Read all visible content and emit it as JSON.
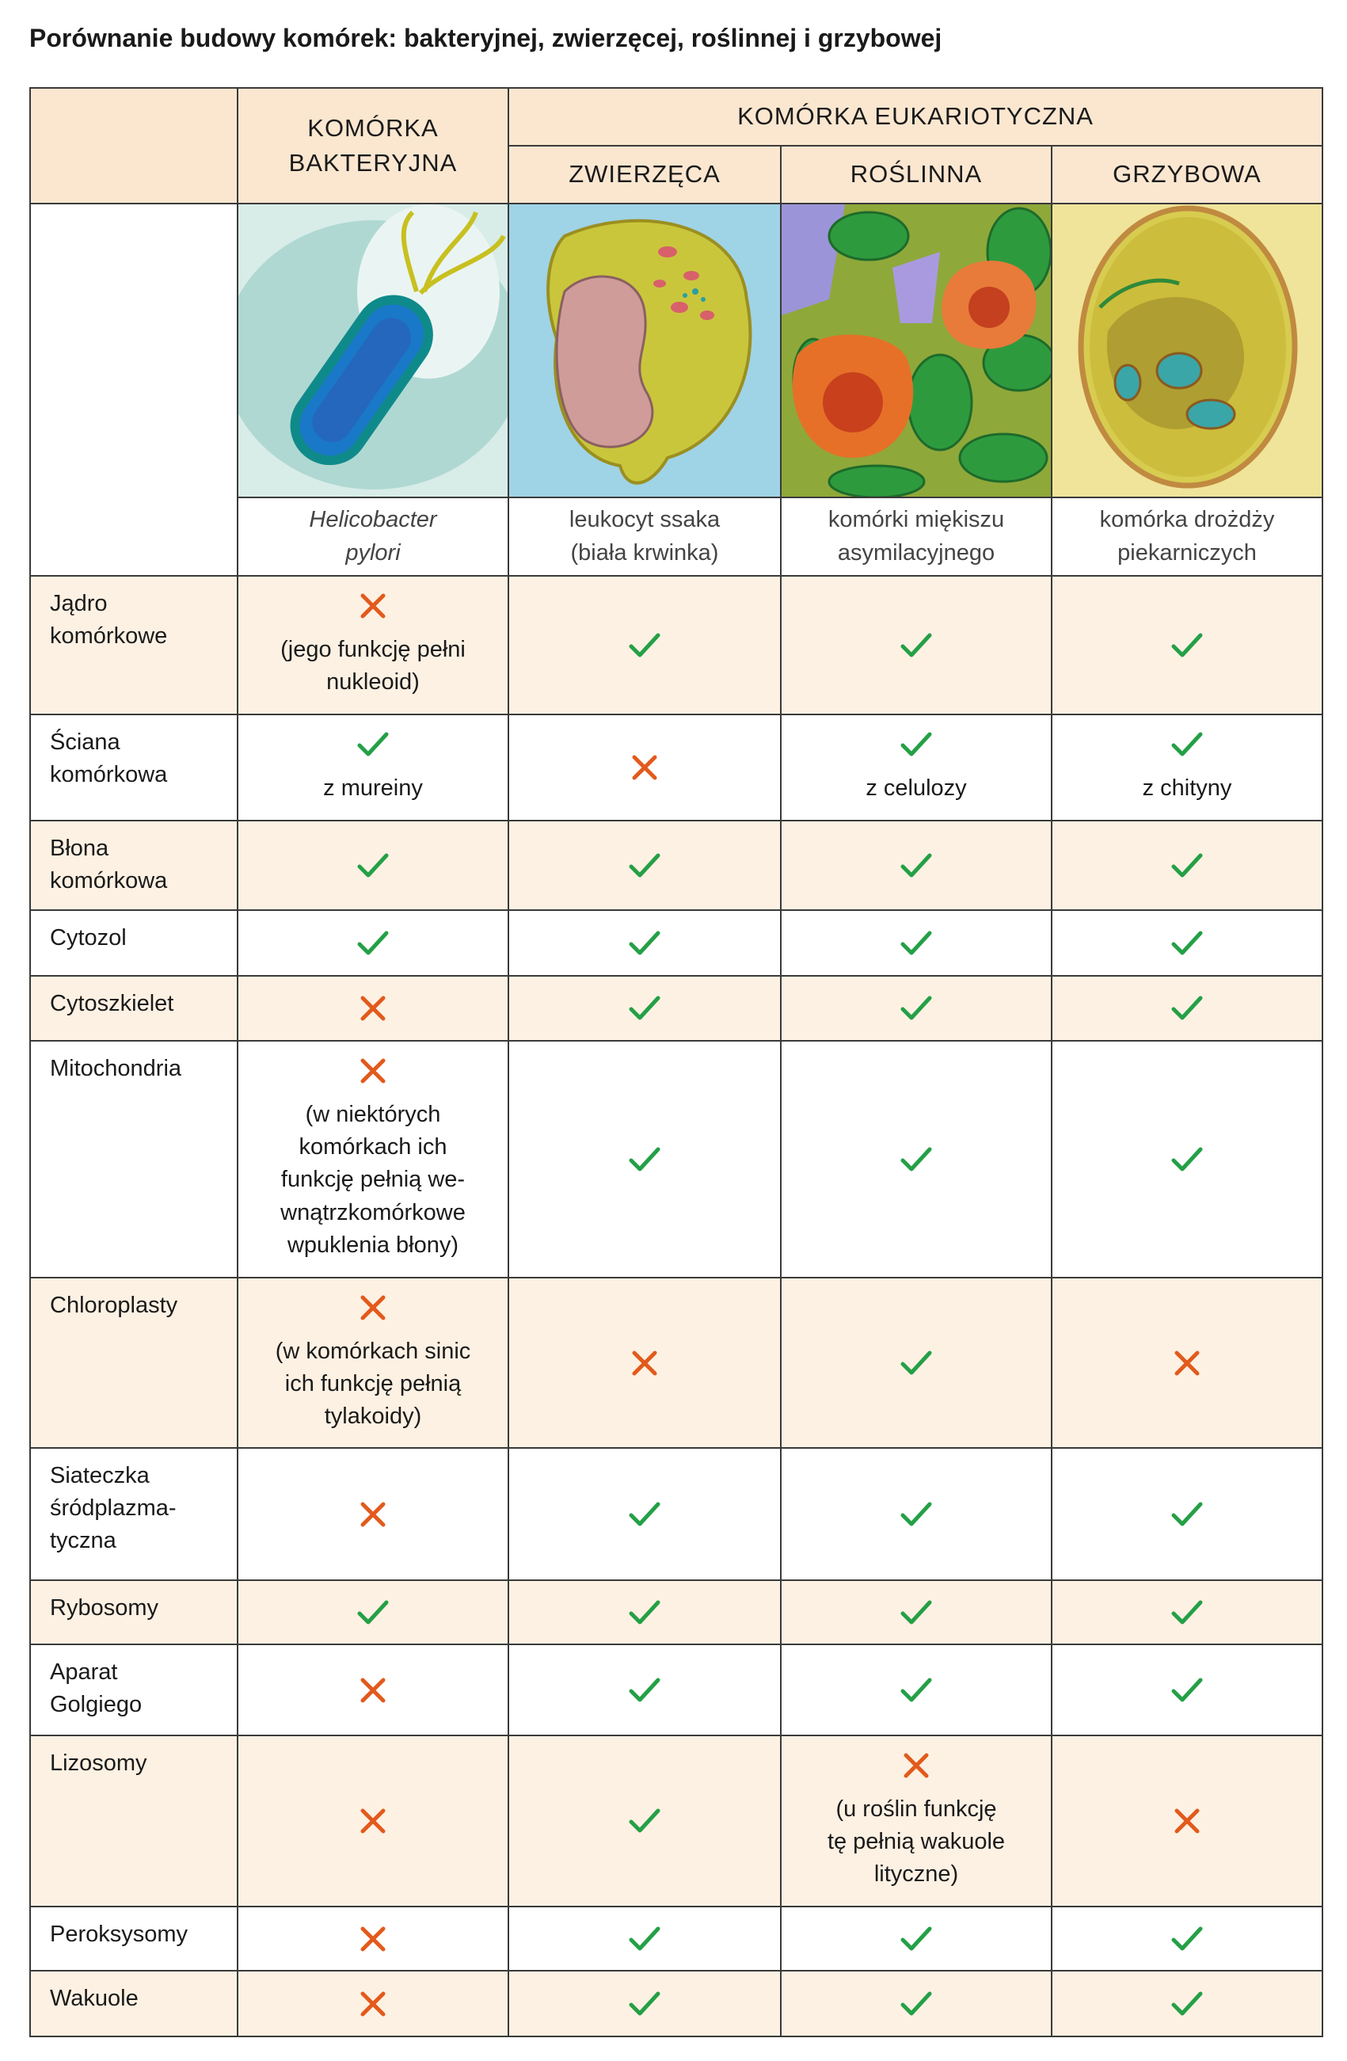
{
  "title": "Porównanie budowy komórek: bakteryjnej, zwierzęcej, roślinnej i grzybowej",
  "table": {
    "header": {
      "bacterial": "KOMÓRKA\nBAKTERYJNA",
      "eukaryotic": "KOMÓRKA EUKARIOTYCZNA",
      "columns": [
        "ZWIERZĘCA",
        "ROŚLINNA",
        "GRZYBOWA"
      ]
    },
    "captions": [
      "Helicobacter\npylori",
      "leukocyt ssaka\n(biała krwinka)",
      "komórki miękiszu\nasymilacyjnego",
      "komórka drożdży\npiekarniczych"
    ],
    "rows": [
      {
        "label": "Jądro\nkomórkowe",
        "cells": [
          {
            "present": false,
            "note": "(jego funkcję pełni\nnukleoid)"
          },
          {
            "present": true
          },
          {
            "present": true
          },
          {
            "present": true
          }
        ]
      },
      {
        "label": "Ściana\nkomórkowa",
        "cells": [
          {
            "present": true,
            "note": "z mureiny"
          },
          {
            "present": false
          },
          {
            "present": true,
            "note": "z celulozy"
          },
          {
            "present": true,
            "note": "z chityny"
          }
        ]
      },
      {
        "label": "Błona\nkomórkowa",
        "cells": [
          {
            "present": true
          },
          {
            "present": true
          },
          {
            "present": true
          },
          {
            "present": true
          }
        ]
      },
      {
        "label": "Cytozol",
        "cells": [
          {
            "present": true
          },
          {
            "present": true
          },
          {
            "present": true
          },
          {
            "present": true
          }
        ]
      },
      {
        "label": "Cytoszkielet",
        "cells": [
          {
            "present": false
          },
          {
            "present": true
          },
          {
            "present": true
          },
          {
            "present": true
          }
        ]
      },
      {
        "label": "Mitochondria",
        "cells": [
          {
            "present": false,
            "note": "(w niektórych\nkomórkach ich\nfunkcję pełnią we-\nwnątrzkomórkowe\nwpuklenia błony)"
          },
          {
            "present": true
          },
          {
            "present": true
          },
          {
            "present": true
          }
        ]
      },
      {
        "label": "Chloroplasty",
        "cells": [
          {
            "present": false,
            "note": "(w komórkach sinic\nich funkcję pełnią\ntylakoidy)"
          },
          {
            "present": false
          },
          {
            "present": true
          },
          {
            "present": false
          }
        ]
      },
      {
        "label": "Siateczka\nśródplazma-\ntyczna",
        "cells": [
          {
            "present": false
          },
          {
            "present": true
          },
          {
            "present": true
          },
          {
            "present": true
          }
        ]
      },
      {
        "label": "Rybosomy",
        "cells": [
          {
            "present": true
          },
          {
            "present": true
          },
          {
            "present": true
          },
          {
            "present": true
          }
        ]
      },
      {
        "label": "Aparat\nGolgiego",
        "cells": [
          {
            "present": false
          },
          {
            "present": true
          },
          {
            "present": true
          },
          {
            "present": true
          }
        ]
      },
      {
        "label": "Lizosomy",
        "cells": [
          {
            "present": false
          },
          {
            "present": true
          },
          {
            "present": false,
            "note": "(u roślin funkcję\ntę pełnią wakuole\nlityczne)"
          },
          {
            "present": false
          }
        ]
      },
      {
        "label": "Peroksysomy",
        "cells": [
          {
            "present": false
          },
          {
            "present": true
          },
          {
            "present": true
          },
          {
            "present": true
          }
        ]
      },
      {
        "label": "Wakuole",
        "cells": [
          {
            "present": false
          },
          {
            "present": true
          },
          {
            "present": true
          },
          {
            "present": true
          }
        ]
      }
    ]
  }
}
